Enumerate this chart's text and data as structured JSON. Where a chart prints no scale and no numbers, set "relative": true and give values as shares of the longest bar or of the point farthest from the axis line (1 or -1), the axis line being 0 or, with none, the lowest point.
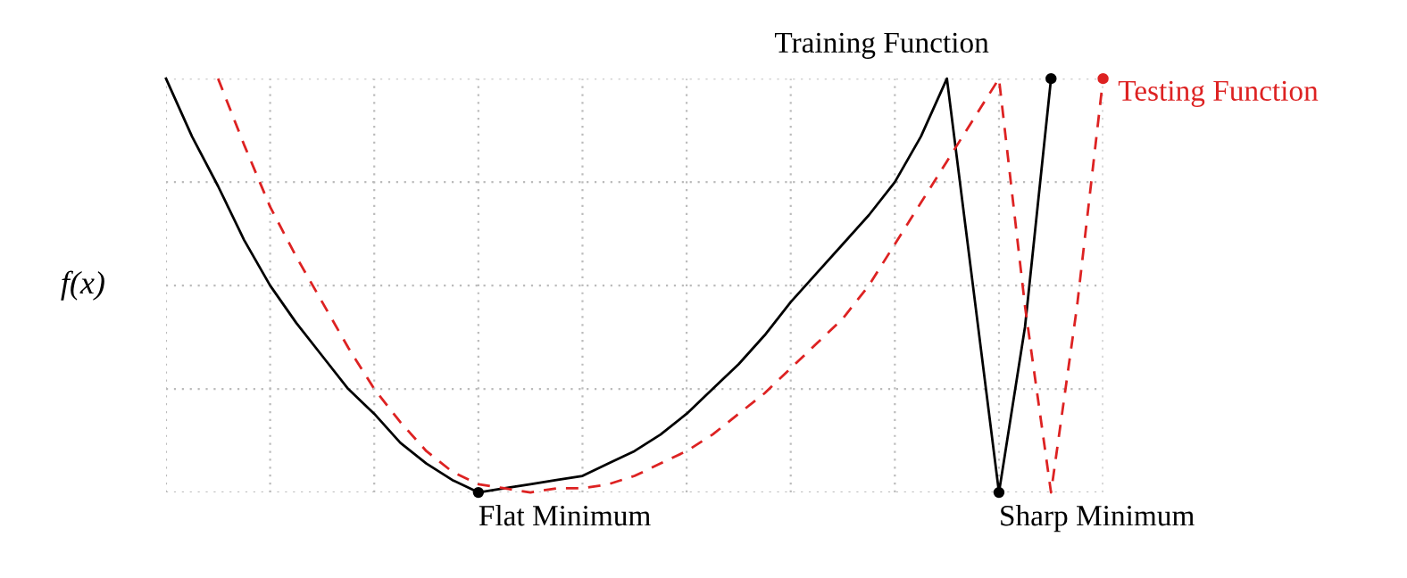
{
  "chart_data": {
    "type": "line",
    "relative": true,
    "ylabel": "f(x)",
    "grid": true,
    "legend": false,
    "marker": "none",
    "categories": [
      null,
      null,
      null,
      null,
      null,
      null,
      null,
      null,
      null,
      null,
      null,
      null,
      null,
      null,
      null,
      null,
      null,
      null,
      null,
      null,
      null,
      null,
      null,
      null,
      null,
      null,
      null,
      null,
      null,
      null,
      null,
      null,
      null,
      null,
      null,
      null,
      null
    ],
    "series": [
      {
        "name": "Training Function",
        "color": "#000000",
        "line_style": "solid",
        "values": [
          1,
          0.86,
          0.74,
          0.61,
          0.5,
          0.41,
          0.33,
          0.25,
          0.19,
          0.12,
          0.07,
          0.03,
          0,
          0.01,
          0.02,
          0.03,
          0.04,
          0.07,
          0.1,
          0.14,
          0.19,
          0.25,
          0.31,
          0.38,
          0.46,
          0.53,
          0.6,
          0.67,
          0.75,
          0.86,
          1,
          0.5,
          0,
          0.4,
          1,
          null,
          null
        ]
      },
      {
        "name": "Testing Function",
        "color": "#dd2222",
        "line_style": "dashed",
        "values": [
          null,
          null,
          1,
          0.84,
          0.69,
          0.57,
          0.46,
          0.35,
          0.25,
          0.17,
          0.1,
          0.05,
          0.02,
          0.01,
          0,
          0.01,
          0.01,
          0.02,
          0.04,
          0.07,
          0.1,
          0.14,
          0.19,
          0.24,
          0.3,
          0.36,
          0.42,
          0.5,
          0.6,
          0.7,
          0.8,
          0.9,
          1,
          0.45,
          0,
          0.45,
          1
        ]
      }
    ],
    "annotations": [
      "Flat Minimum",
      "Sharp Minimum"
    ]
  }
}
